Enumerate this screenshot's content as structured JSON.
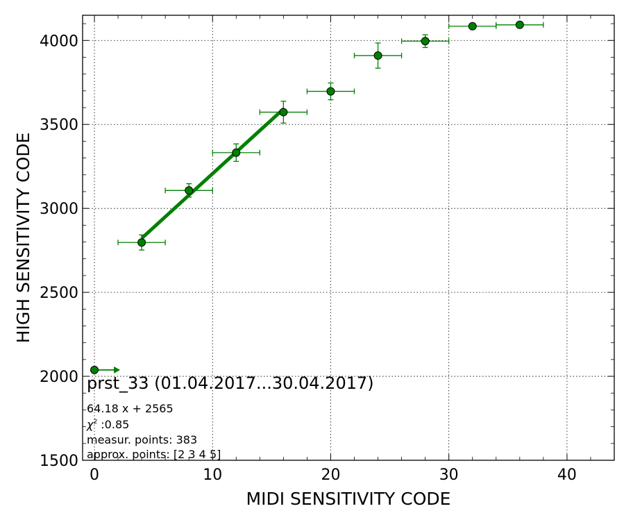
{
  "chart_data": {
    "type": "scatter",
    "title": "",
    "xlabel": "MIDI SENSITIVITY CODE",
    "ylabel": "HIGH SENSITIVITY CODE",
    "xlim": [
      -1,
      44
    ],
    "ylim": [
      1500,
      4150
    ],
    "xticks": [
      0,
      10,
      20,
      30,
      40
    ],
    "yticks": [
      1500,
      2000,
      2500,
      3000,
      3500,
      4000
    ],
    "grid": true,
    "colors": {
      "marker": "#008000",
      "fit_line": "#008000",
      "errorbar": "#008000"
    },
    "points": [
      {
        "x": 4,
        "y": 2797,
        "xerr": 2,
        "yerr": 45
      },
      {
        "x": 8,
        "y": 3107,
        "xerr": 2,
        "yerr": 40
      },
      {
        "x": 12,
        "y": 3332,
        "xerr": 2,
        "yerr": 52
      },
      {
        "x": 16,
        "y": 3573,
        "xerr": 2,
        "yerr": 65
      },
      {
        "x": 20,
        "y": 3697,
        "xerr": 2,
        "yerr": 50
      },
      {
        "x": 24,
        "y": 3910,
        "xerr": 2,
        "yerr": 75
      },
      {
        "x": 28,
        "y": 3996,
        "xerr": 2,
        "yerr": 38
      },
      {
        "x": 32,
        "y": 4085,
        "xerr": 2,
        "yerr": 0
      },
      {
        "x": 36,
        "y": 4093,
        "xerr": 2,
        "yerr": 0
      }
    ],
    "extra_point": {
      "x": 0,
      "y": 2038,
      "arrow_to_x": 2
    },
    "fit": {
      "slope": 64.18,
      "intercept": 2565,
      "x_range": [
        4,
        16
      ]
    },
    "annotations": {
      "title": "prst_33 (01.04.2017...30.04.2017)",
      "equation": "64.18 x + 2565",
      "chi_symbol": "χ",
      "chi_exp": "2",
      "chi_value": " :0.85",
      "measur_points": "measur. points: 383",
      "approx_points": "approx. points: [2 3 4 5]"
    }
  }
}
